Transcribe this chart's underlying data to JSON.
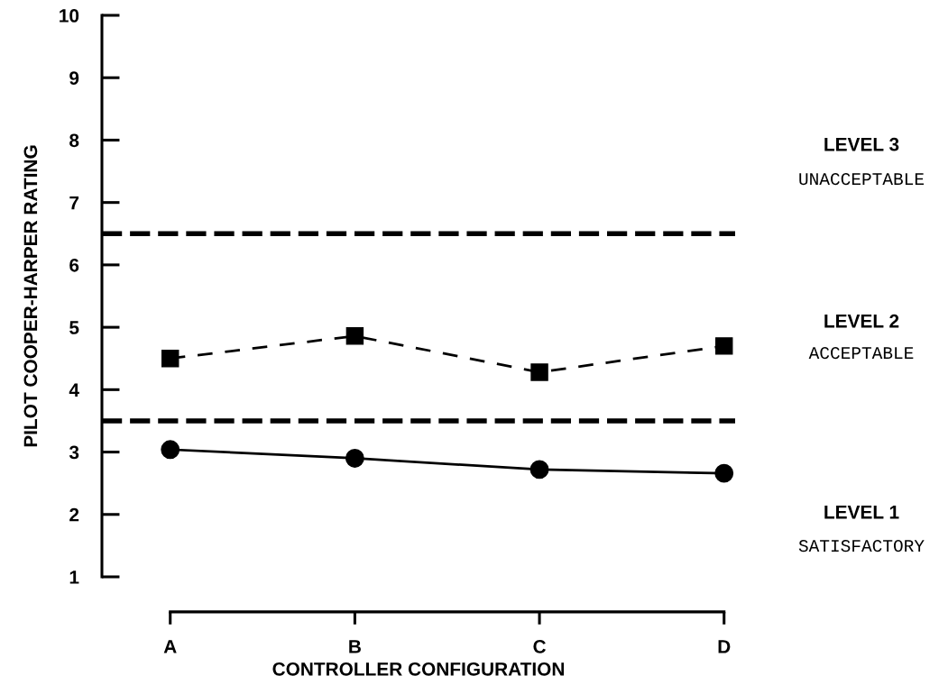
{
  "chart_data": {
    "type": "line",
    "xlabel": "CONTROLLER CONFIGURATION",
    "ylabel": "PILOT COOPER-HARPER RATING",
    "categories": [
      "A",
      "B",
      "C",
      "D"
    ],
    "series": [
      {
        "color": "#000000",
        "values": [
          3.04,
          2.9,
          2.72,
          2.66
        ],
        "marker": "circle",
        "line_style": "solid"
      },
      {
        "color": "#000000",
        "values": [
          4.5,
          4.86,
          4.28,
          4.7
        ],
        "marker": "square",
        "line_style": "dashed"
      }
    ],
    "ylim": [
      1,
      10
    ],
    "yticks": [
      1,
      2,
      3,
      4,
      5,
      6,
      7,
      8,
      9,
      10
    ],
    "grid": false,
    "legend": false,
    "ref_lines": [
      {
        "axis": "y",
        "value": 6.5,
        "color": "#000000",
        "line_style": "dashed"
      },
      {
        "axis": "y",
        "value": 3.5,
        "color": "#000000",
        "line_style": "dashed"
      }
    ],
    "annotations": [
      "LEVEL 3",
      "UNACCEPTABLE",
      "LEVEL 2",
      "ACCEPTABLE",
      "LEVEL 1",
      "SATISFACTORY"
    ]
  }
}
